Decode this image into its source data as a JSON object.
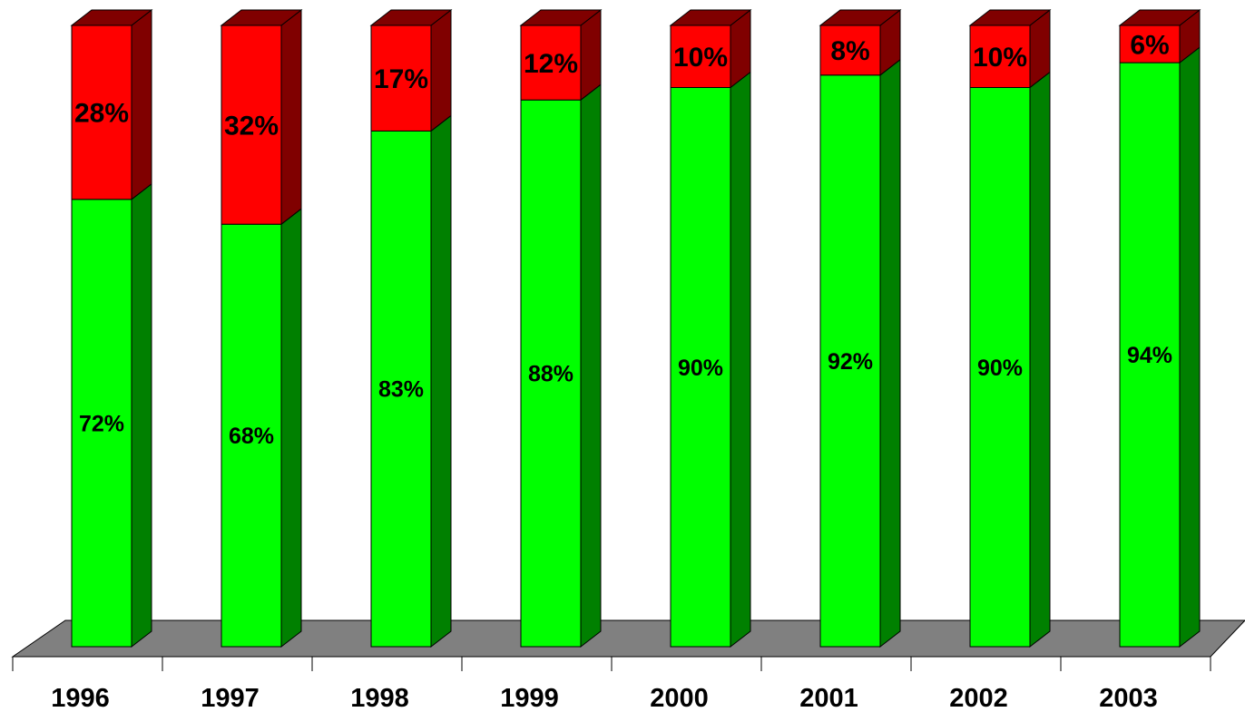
{
  "chart_data": {
    "type": "bar",
    "stacked": true,
    "three_d": true,
    "categories": [
      "1996",
      "1997",
      "1998",
      "1999",
      "2000",
      "2001",
      "2002",
      "2003"
    ],
    "series": [
      {
        "values": [
          72,
          68,
          83,
          88,
          90,
          92,
          90,
          94
        ],
        "labels": [
          "72%",
          "68%",
          "83%",
          "88%",
          "90%",
          "92%",
          "90%",
          "94%"
        ],
        "color": "#00FF00",
        "side_color": "#008000"
      },
      {
        "values": [
          28,
          32,
          17,
          12,
          10,
          8,
          10,
          6
        ],
        "labels": [
          "28%",
          "32%",
          "17%",
          "12%",
          "10%",
          "8%",
          "10%",
          "6%"
        ],
        "color": "#FF0000",
        "side_color": "#800000"
      }
    ],
    "ylim": [
      0,
      100
    ],
    "grid": false,
    "legend": "none",
    "floor_color": "#808080",
    "title": "",
    "xlabel": "",
    "ylabel": ""
  }
}
